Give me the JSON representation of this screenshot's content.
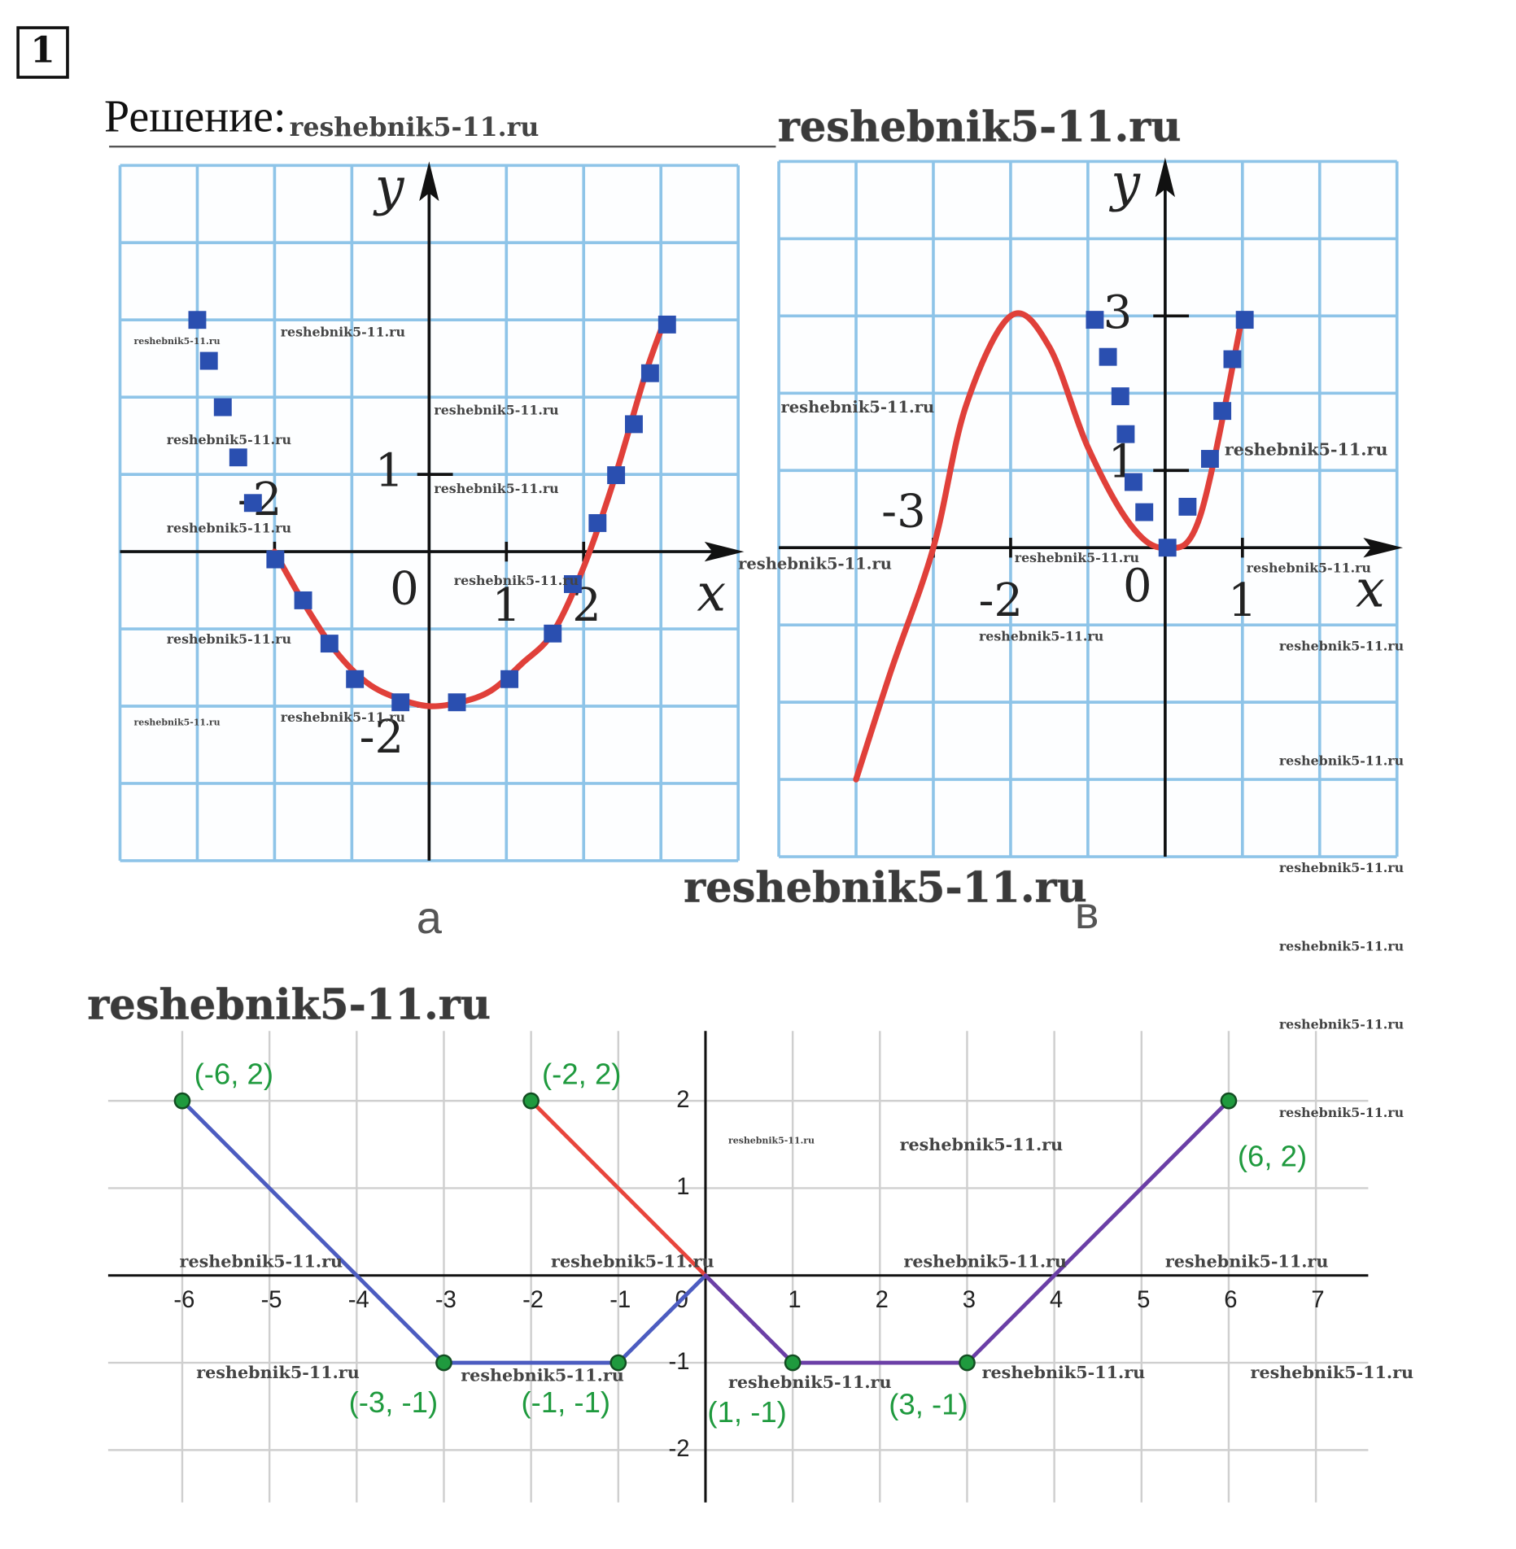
{
  "problem_number": "1",
  "heading": "Решение:",
  "watermark": "reshebnik5-11.ru",
  "chart_data": [
    {
      "type": "line",
      "caption": "а",
      "xlabel": "x",
      "ylabel": "y",
      "origin_label": "0",
      "xlim": [
        -4,
        4
      ],
      "ylim": [
        -4,
        5
      ],
      "xgrid": [
        -4,
        -3,
        -2,
        -1,
        0,
        1,
        2,
        3,
        4
      ],
      "ygrid": [
        -4,
        -3,
        -2,
        -1,
        0,
        1,
        2,
        3,
        4,
        5
      ],
      "xticks": [
        -2,
        1,
        2
      ],
      "yticks": [
        1,
        -2
      ],
      "series": [
        {
          "style": "curve",
          "color": "#e0403a",
          "x": [
            -2,
            -1.6,
            -1.2,
            -0.8,
            -0.4,
            0,
            0.4,
            0.8,
            1.2,
            1.6,
            2,
            2.4,
            2.8,
            3.05
          ],
          "values": [
            0,
            -0.7,
            -1.3,
            -1.7,
            -1.9,
            -2,
            -1.95,
            -1.8,
            -1.45,
            -1.05,
            -0.2,
            0.95,
            2.3,
            3
          ]
        },
        {
          "style": "markers",
          "color": "#2a4fb0",
          "x": [
            -3.0,
            -2.85,
            -2.67,
            -2.47,
            -2.28,
            -1.99,
            -1.63,
            -1.29,
            -0.96,
            -0.37,
            0.36,
            1.04,
            1.6,
            1.86,
            2.18,
            2.42,
            2.65,
            2.86,
            3.08
          ],
          "values": [
            3.0,
            2.47,
            1.87,
            1.22,
            0.63,
            -0.1,
            -0.63,
            -1.19,
            -1.65,
            -1.95,
            -1.95,
            -1.65,
            -1.06,
            -0.42,
            0.37,
            0.99,
            1.65,
            2.31,
            2.94
          ]
        }
      ]
    },
    {
      "type": "line",
      "caption": "в",
      "xlabel": "x",
      "ylabel": "y",
      "origin_label": "0",
      "xlim": [
        -5,
        3
      ],
      "ylim": [
        -4,
        5
      ],
      "xgrid": [
        -5,
        -4,
        -3,
        -2,
        -1,
        0,
        1,
        2,
        3
      ],
      "ygrid": [
        -4,
        -3,
        -2,
        -1,
        0,
        1,
        2,
        3,
        4,
        5
      ],
      "xticks": [
        -3,
        -2,
        1
      ],
      "yticks": [
        1,
        3
      ],
      "series": [
        {
          "style": "curve",
          "color": "#e0403a",
          "x": [
            -4.0,
            -3.55,
            -3,
            -2.58,
            -2,
            -1.5,
            -1,
            -0.45,
            0,
            0.45,
            1
          ],
          "values": [
            -3.0,
            -1.6,
            0,
            1.83,
            3,
            2.6,
            1.3,
            0.3,
            0,
            0.4,
            3
          ]
        },
        {
          "style": "markers",
          "color": "#2a4fb0",
          "x": [
            -0.91,
            -0.74,
            -0.58,
            -0.51,
            -0.41,
            -0.27,
            0.03,
            0.29,
            0.58,
            0.74,
            0.87,
            1.03
          ],
          "values": [
            2.95,
            2.47,
            1.96,
            1.47,
            0.85,
            0.46,
            0,
            0.53,
            1.15,
            1.77,
            2.44,
            2.95
          ]
        }
      ]
    },
    {
      "type": "line",
      "xlim": [
        -6.85,
        7.6
      ],
      "ylim": [
        -2.6,
        2.8
      ],
      "xticks": [
        -6,
        -5,
        -4,
        -3,
        -2,
        -1,
        0,
        1,
        2,
        3,
        4,
        5,
        6,
        7
      ],
      "yticks": [
        2,
        1,
        -1,
        -2
      ],
      "grid": true,
      "series": [
        {
          "style": "line",
          "color": "#4c5cc0",
          "x": [
            -6,
            -3,
            -1,
            0
          ],
          "values": [
            2,
            -1,
            -1,
            0
          ]
        },
        {
          "style": "line",
          "color": "#e8453c",
          "x": [
            -2,
            0
          ],
          "values": [
            2,
            0
          ]
        },
        {
          "style": "line",
          "color": "#6b3fa6",
          "x": [
            0,
            1,
            3,
            6
          ],
          "values": [
            0,
            -1,
            -1,
            2
          ]
        }
      ],
      "points": {
        "color": "#1f9a3e",
        "x": [
          -6,
          -2,
          -3,
          -1,
          1,
          3,
          6
        ],
        "values": [
          2,
          2,
          -1,
          -1,
          -1,
          -1,
          2
        ],
        "labels": [
          "(-6, 2)",
          "(-2, 2)",
          "(-3, -1)",
          "(-1, -1)",
          "(1, -1)",
          "(3, -1)",
          "(6, 2)"
        ]
      }
    }
  ]
}
